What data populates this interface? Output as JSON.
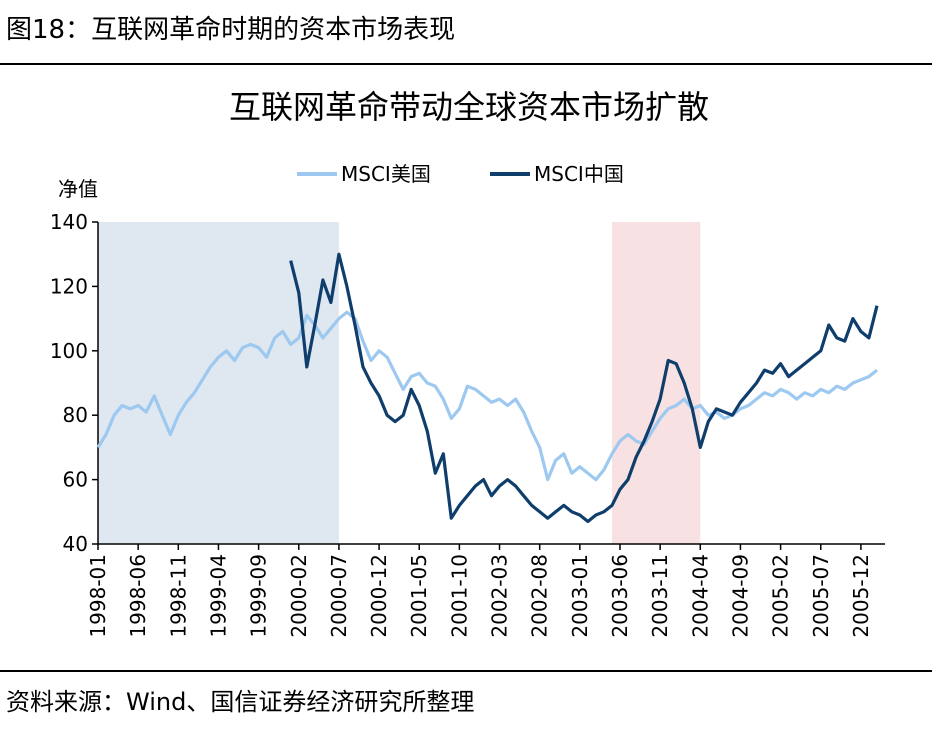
{
  "figure_title": "图18：互联网革命时期的资本市场表现",
  "source": "资料来源：Wind、国信证券经济研究所整理",
  "colors": {
    "us_series": "#9dc8ef",
    "china_series": "#0f3e6c",
    "shade_blue": "#dfe7f0",
    "shade_pink": "#f8e1e2"
  },
  "chart_data": {
    "type": "line",
    "title": "互联网革命带动全球资本市场扩散",
    "ylabel": "净值",
    "xlabel": "",
    "ylim": [
      40,
      140
    ],
    "yticks": [
      40,
      60,
      80,
      100,
      120,
      140
    ],
    "xlim": [
      "1998-01",
      "2006-03"
    ],
    "xticks": [
      "1998-01",
      "1998-06",
      "1998-11",
      "1999-04",
      "1999-09",
      "2000-02",
      "2000-07",
      "2000-12",
      "2001-05",
      "2001-10",
      "2002-03",
      "2002-08",
      "2003-01",
      "2003-06",
      "2003-11",
      "2004-04",
      "2004-09",
      "2005-02",
      "2005-07",
      "2005-12"
    ],
    "legend": [
      "MSCI美国",
      "MSCI中国"
    ],
    "legend_position": "top-center",
    "shaded_periods": [
      {
        "start": "1998-01",
        "end": "2000-07",
        "color": "blue"
      },
      {
        "start": "2003-05",
        "end": "2004-04",
        "color": "pink"
      }
    ],
    "series": [
      {
        "name": "MSCI美国",
        "color": "#9dc8ef",
        "x": [
          "1998-01",
          "1998-02",
          "1998-03",
          "1998-04",
          "1998-05",
          "1998-06",
          "1998-07",
          "1998-08",
          "1998-09",
          "1998-10",
          "1998-11",
          "1998-12",
          "1999-01",
          "1999-02",
          "1999-03",
          "1999-04",
          "1999-05",
          "1999-06",
          "1999-07",
          "1999-08",
          "1999-09",
          "1999-10",
          "1999-11",
          "1999-12",
          "2000-01",
          "2000-02",
          "2000-03",
          "2000-04",
          "2000-05",
          "2000-06",
          "2000-07",
          "2000-08",
          "2000-09",
          "2000-10",
          "2000-11",
          "2000-12",
          "2001-01",
          "2001-02",
          "2001-03",
          "2001-04",
          "2001-05",
          "2001-06",
          "2001-07",
          "2001-08",
          "2001-09",
          "2001-10",
          "2001-11",
          "2001-12",
          "2002-01",
          "2002-02",
          "2002-03",
          "2002-04",
          "2002-05",
          "2002-06",
          "2002-07",
          "2002-08",
          "2002-09",
          "2002-10",
          "2002-11",
          "2002-12",
          "2003-01",
          "2003-02",
          "2003-03",
          "2003-04",
          "2003-05",
          "2003-06",
          "2003-07",
          "2003-08",
          "2003-09",
          "2003-10",
          "2003-11",
          "2003-12",
          "2004-01",
          "2004-02",
          "2004-03",
          "2004-04",
          "2004-05",
          "2004-06",
          "2004-07",
          "2004-08",
          "2004-09",
          "2004-10",
          "2004-11",
          "2004-12",
          "2005-01",
          "2005-02",
          "2005-03",
          "2005-04",
          "2005-05",
          "2005-06",
          "2005-07",
          "2005-08",
          "2005-09",
          "2005-10",
          "2005-11",
          "2005-12",
          "2006-01",
          "2006-02"
        ],
        "values": [
          70,
          74,
          80,
          83,
          82,
          83,
          81,
          86,
          80,
          74,
          80,
          84,
          87,
          91,
          95,
          98,
          100,
          97,
          101,
          102,
          101,
          98,
          104,
          106,
          102,
          104,
          111,
          108,
          104,
          107,
          110,
          112,
          110,
          103,
          97,
          100,
          98,
          93,
          88,
          92,
          93,
          90,
          89,
          85,
          79,
          82,
          89,
          88,
          86,
          84,
          85,
          83,
          85,
          81,
          75,
          70,
          60,
          66,
          68,
          62,
          64,
          62,
          60,
          63,
          68,
          72,
          74,
          72,
          71,
          75,
          79,
          82,
          83,
          85,
          82,
          83,
          80,
          81,
          79,
          80,
          82,
          83,
          85,
          87,
          86,
          88,
          87,
          85,
          87,
          86,
          88,
          87,
          89,
          88,
          90,
          91,
          92,
          94
        ]
      },
      {
        "name": "MSCI中国",
        "color": "#0f3e6c",
        "x": [
          "2000-01",
          "2000-02",
          "2000-03",
          "2000-04",
          "2000-05",
          "2000-06",
          "2000-07",
          "2000-08",
          "2000-09",
          "2000-10",
          "2000-11",
          "2000-12",
          "2001-01",
          "2001-02",
          "2001-03",
          "2001-04",
          "2001-05",
          "2001-06",
          "2001-07",
          "2001-08",
          "2001-09",
          "2001-10",
          "2001-11",
          "2001-12",
          "2002-01",
          "2002-02",
          "2002-03",
          "2002-04",
          "2002-05",
          "2002-06",
          "2002-07",
          "2002-08",
          "2002-09",
          "2002-10",
          "2002-11",
          "2002-12",
          "2003-01",
          "2003-02",
          "2003-03",
          "2003-04",
          "2003-05",
          "2003-06",
          "2003-07",
          "2003-08",
          "2003-09",
          "2003-10",
          "2003-11",
          "2003-12",
          "2004-01",
          "2004-02",
          "2004-03",
          "2004-04",
          "2004-05",
          "2004-06",
          "2004-07",
          "2004-08",
          "2004-09",
          "2004-10",
          "2004-11",
          "2004-12",
          "2005-01",
          "2005-02",
          "2005-03",
          "2005-04",
          "2005-05",
          "2005-06",
          "2005-07",
          "2005-08",
          "2005-09",
          "2005-10",
          "2005-11",
          "2005-12",
          "2006-01",
          "2006-02"
        ],
        "values": [
          128,
          118,
          95,
          108,
          122,
          115,
          130,
          120,
          108,
          95,
          90,
          86,
          80,
          78,
          80,
          88,
          83,
          75,
          62,
          68,
          48,
          52,
          55,
          58,
          60,
          55,
          58,
          60,
          58,
          55,
          52,
          50,
          48,
          50,
          52,
          50,
          49,
          47,
          49,
          50,
          52,
          57,
          60,
          67,
          72,
          78,
          85,
          97,
          96,
          90,
          82,
          70,
          78,
          82,
          81,
          80,
          84,
          87,
          90,
          94,
          93,
          96,
          92,
          94,
          96,
          98,
          100,
          108,
          104,
          103,
          110,
          106,
          104,
          114
        ]
      }
    ]
  }
}
